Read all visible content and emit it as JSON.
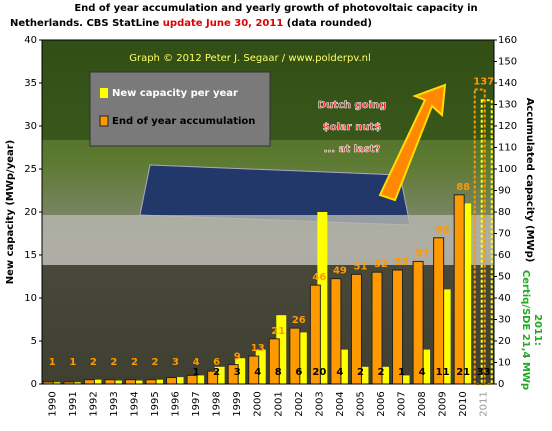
{
  "chart_data": {
    "type": "bar",
    "title": [
      "End of year accumulation  and yearly growth of photovoltaic capacity in",
      "Netherlands.  CBS StatLine",
      "update June 30, 2011",
      "(data rounded)"
    ],
    "credit": "Graph © 2012 Peter J. Segaar / www.polderpv.nl",
    "annotation": [
      "Dutch going",
      "$olar nut$",
      "... at last?"
    ],
    "side_note": [
      "2011:",
      "Certiq/SDE 21,4 MWp"
    ],
    "ylabel": "New capacity (MWp/year)",
    "y2label": "Accumulated capacity (MWp)",
    "categories": [
      "1990",
      "1991",
      "1992",
      "1993",
      "1994",
      "1995",
      "1996",
      "1997",
      "1998",
      "1999",
      "2000",
      "2001",
      "2002",
      "2003",
      "2004",
      "2005",
      "2006",
      "2007",
      "2008",
      "2009",
      "2010",
      "2011"
    ],
    "series": [
      {
        "name": "New capacity per year",
        "color": "#ffff00",
        "axis": "y",
        "values": [
          0.2,
          0.2,
          0.5,
          0.4,
          0.4,
          0.5,
          0.8,
          1,
          2,
          3,
          4,
          8,
          6,
          20,
          4,
          2,
          2,
          1,
          4,
          11,
          21,
          33
        ],
        "value_labels": [
          null,
          null,
          null,
          null,
          null,
          null,
          null,
          "1",
          "2",
          "3",
          "4",
          "8",
          "6",
          "20",
          "4",
          "2",
          "2",
          "1",
          "4",
          "11",
          "21",
          "33"
        ]
      },
      {
        "name": "End of year accumulation",
        "color": "#ff9900",
        "axis": "y2",
        "values": [
          1,
          1,
          2,
          2,
          2,
          2,
          3,
          4,
          6,
          9,
          13,
          21,
          26,
          46,
          49,
          51,
          52,
          53,
          57,
          68,
          88,
          137
        ]
      }
    ],
    "ylim": [
      0,
      40
    ],
    "yticks": [
      0,
      5,
      10,
      15,
      20,
      25,
      30,
      35,
      40
    ],
    "y2lim": [
      0,
      160
    ],
    "y2ticks": [
      0,
      10,
      20,
      30,
      40,
      50,
      60,
      70,
      80,
      90,
      100,
      110,
      120,
      130,
      140,
      150,
      160
    ],
    "grid": false
  }
}
